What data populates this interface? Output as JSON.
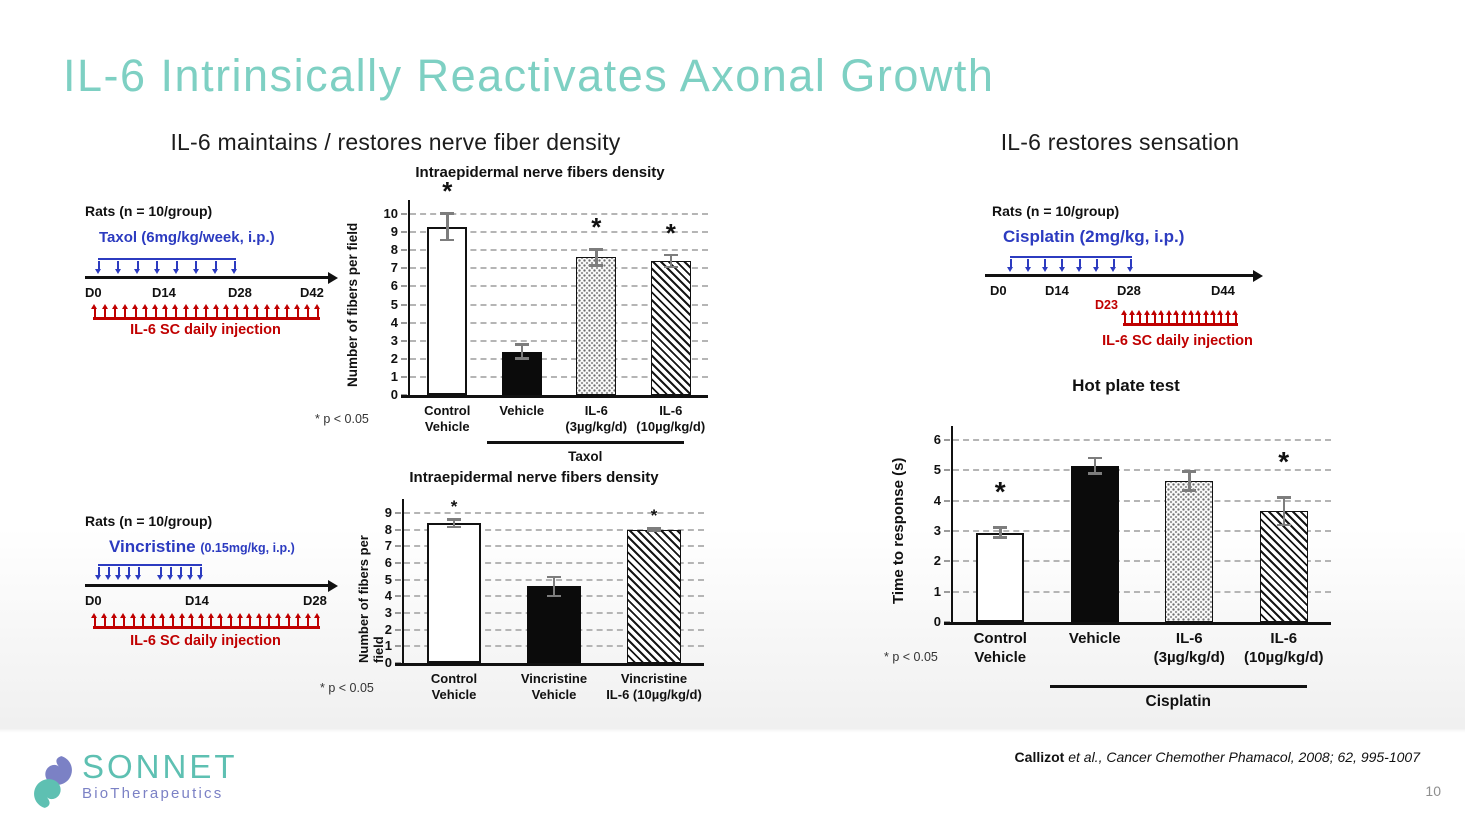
{
  "slide": {
    "title": "IL-6 Intrinsically Reactivates Axonal Growth",
    "left_subtitle": "IL-6 maintains / restores nerve fiber density",
    "right_subtitle": "IL-6 restores sensation",
    "page_number": "10",
    "citation": {
      "author": "Callizot",
      "rest": " et al., Cancer Chemother Phamacol, 2008; 62, 995-1007"
    },
    "logo": {
      "name": "SONNET",
      "tagline": "BioTherapeutics"
    }
  },
  "colors": {
    "title_teal": "#7ed0c3",
    "blue": "#2c3bc0",
    "red": "#c00000",
    "logo_teal": "#5ec0b2",
    "logo_purple": "#7b81c5",
    "page_gray": "#8f8f8f"
  },
  "timelines": [
    {
      "id": "taxol",
      "rats_label": "Rats (n = 10/group)",
      "drug_name": "Taxol",
      "drug_dose": "(6mg/kg/week, i.p.)",
      "drug_arrow_groups": [
        8
      ],
      "day_labels": [
        "D0",
        "D14",
        "D28",
        "D42"
      ],
      "il6_arrow_count": 23,
      "il6_label": "IL-6  SC daily injection"
    },
    {
      "id": "vincristine",
      "rats_label": "Rats (n = 10/group)",
      "drug_name": "Vincristine",
      "drug_dose": "(0.15mg/kg, i.p.)",
      "drug_arrow_groups": [
        5,
        5
      ],
      "day_labels": [
        "D0",
        "D14",
        "D28"
      ],
      "il6_arrow_count": 24,
      "il6_label": "IL-6  SC daily injection"
    },
    {
      "id": "cisplatin",
      "rats_label": "Rats (n = 10/group)",
      "drug_name": "Cisplatin",
      "drug_dose": "(2mg/kg, i.p.)",
      "drug_arrow_groups": [
        8
      ],
      "day_labels": [
        "D0",
        "D14",
        "D28",
        "D44"
      ],
      "il6_start_label": "D23",
      "il6_arrow_count": 16,
      "il6_label": "IL-6  SC daily injection"
    }
  ],
  "chart_data": [
    {
      "type": "bar",
      "title": "Intraepidermal nerve fibers density",
      "ylabel": "Number of fibers per field",
      "ylim": [
        0,
        10
      ],
      "ytick_step": 1,
      "grid": "dashed horizontal",
      "categories": [
        [
          "Control",
          "Vehicle"
        ],
        [
          "Vehicle"
        ],
        [
          "IL-6",
          "(3µg/kg/d)"
        ],
        [
          "IL-6",
          "(10µg/kg/d)"
        ]
      ],
      "values": [
        9.3,
        2.4,
        7.6,
        7.4
      ],
      "errors": [
        0.8,
        0.45,
        0.5,
        0.4
      ],
      "bar_styles": [
        "white",
        "black",
        "dots",
        "hatch"
      ],
      "significant": [
        true,
        false,
        true,
        true
      ],
      "group": {
        "label": "Taxol",
        "from": 1,
        "to": 3
      },
      "footnote": "* p < 0.05"
    },
    {
      "type": "bar",
      "title": "Intraepidermal nerve fibers density",
      "ylabel": "Number of fibers per field",
      "ylim": [
        0,
        9
      ],
      "ytick_step": 1,
      "grid": "dashed horizontal",
      "categories": [
        [
          "Control",
          "Vehicle"
        ],
        [
          "Vincristine",
          "Vehicle"
        ],
        [
          "Vincristine",
          "IL-6 (10µg/kg/d)"
        ]
      ],
      "values": [
        8.4,
        4.6,
        8.0
      ],
      "errors": [
        0.3,
        0.65,
        0.15
      ],
      "bar_styles": [
        "white",
        "black",
        "hatch"
      ],
      "significant": [
        true,
        false,
        true
      ],
      "group": null,
      "footnote": "* p < 0.05"
    },
    {
      "type": "bar",
      "title": "Hot plate test",
      "ylabel": "Time to response (s)",
      "ylim": [
        0,
        6
      ],
      "ytick_step": 1,
      "grid": "dashed horizontal",
      "categories": [
        [
          "Control",
          "Vehicle"
        ],
        [
          "Vehicle"
        ],
        [
          "IL-6",
          "(3µg/kg/d)"
        ],
        [
          "IL-6",
          "(10µg/kg/d)"
        ]
      ],
      "values": [
        2.95,
        5.15,
        4.65,
        3.65
      ],
      "errors": [
        0.2,
        0.3,
        0.35,
        0.5
      ],
      "bar_styles": [
        "white",
        "black",
        "dots",
        "hatch"
      ],
      "significant": [
        true,
        false,
        false,
        true
      ],
      "group": {
        "label": "Cisplatin",
        "from": 1,
        "to": 3
      },
      "footnote": "* p < 0.05"
    }
  ]
}
